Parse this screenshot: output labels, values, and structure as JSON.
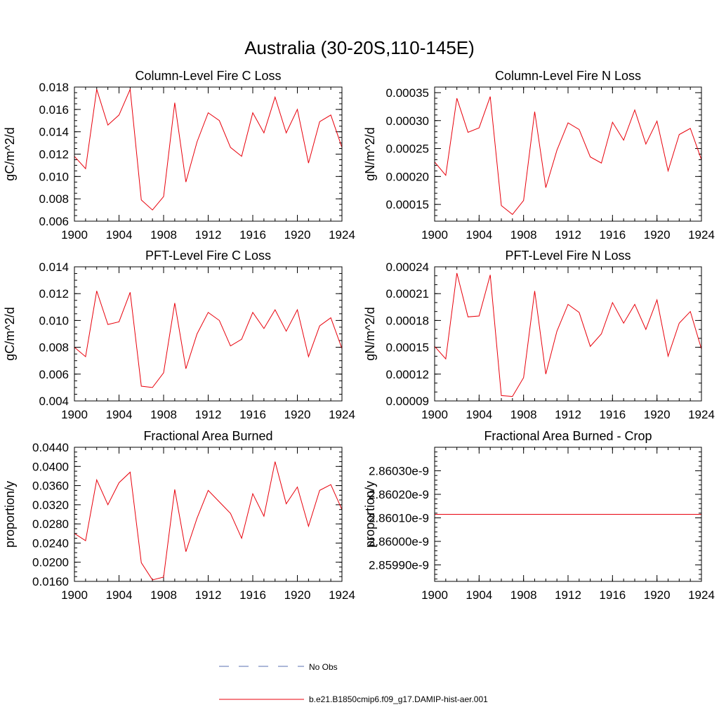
{
  "figure": {
    "title": "Australia (30-20S,110-145E)"
  },
  "legend": {
    "items": [
      {
        "label": "No Obs",
        "style": "dashed",
        "color": "#5a6fb0"
      },
      {
        "label": "b.e21.B1850cmip6.f09_g17.DAMIP-hist-aer.001",
        "style": "solid",
        "color": "#e8000b"
      }
    ]
  },
  "chart_data": [
    {
      "type": "line",
      "title": "Column-Level Fire C Loss",
      "ylabel": "gC/m^2/d",
      "xlim": [
        1900,
        1924
      ],
      "ylim": [
        0.006,
        0.018
      ],
      "xticks": [
        1900,
        1904,
        1908,
        1912,
        1916,
        1920,
        1924
      ],
      "yticks": [
        0.006,
        0.008,
        0.01,
        0.012,
        0.014,
        0.016,
        0.018
      ],
      "yticklabels": [
        "0.006",
        "0.008",
        "0.010",
        "0.012",
        "0.014",
        "0.016",
        "0.018"
      ],
      "yminor": 0.0005,
      "series": [
        {
          "color": "#e8000b",
          "x": [
            1900,
            1901,
            1902,
            1903,
            1904,
            1905,
            1906,
            1907,
            1908,
            1909,
            1910,
            1911,
            1912,
            1913,
            1914,
            1915,
            1916,
            1917,
            1918,
            1919,
            1920,
            1921,
            1922,
            1923,
            1924
          ],
          "y": [
            0.0118,
            0.0107,
            0.0178,
            0.0146,
            0.0155,
            0.0178,
            0.0079,
            0.007,
            0.0082,
            0.0166,
            0.0095,
            0.0131,
            0.0157,
            0.015,
            0.0126,
            0.0118,
            0.0157,
            0.0139,
            0.0171,
            0.0139,
            0.016,
            0.0112,
            0.0149,
            0.0155,
            0.0126
          ]
        }
      ]
    },
    {
      "type": "line",
      "title": "Column-Level Fire N Loss",
      "ylabel": "gN/m^2/d",
      "xlim": [
        1900,
        1924
      ],
      "ylim": [
        0.00012,
        0.00036
      ],
      "xticks": [
        1900,
        1904,
        1908,
        1912,
        1916,
        1920,
        1924
      ],
      "yticks": [
        0.00015,
        0.0002,
        0.00025,
        0.0003,
        0.00035
      ],
      "yticklabels": [
        "0.00015",
        "0.00020",
        "0.00025",
        "0.00030",
        "0.00035"
      ],
      "yminor": 1e-05,
      "series": [
        {
          "color": "#e8000b",
          "x": [
            1900,
            1901,
            1902,
            1903,
            1904,
            1905,
            1906,
            1907,
            1908,
            1909,
            1910,
            1911,
            1912,
            1913,
            1914,
            1915,
            1916,
            1917,
            1918,
            1919,
            1920,
            1921,
            1922,
            1923,
            1924
          ],
          "y": [
            0.000226,
            0.000202,
            0.00034,
            0.000279,
            0.000287,
            0.000343,
            0.000148,
            0.000132,
            0.000157,
            0.000316,
            0.00018,
            0.000247,
            0.000296,
            0.000284,
            0.000235,
            0.000224,
            0.000297,
            0.000265,
            0.000319,
            0.000258,
            0.000299,
            0.00021,
            0.000275,
            0.000286,
            0.00023
          ]
        }
      ]
    },
    {
      "type": "line",
      "title": "PFT-Level Fire C Loss",
      "ylabel": "gC/m^2/d",
      "xlim": [
        1900,
        1924
      ],
      "ylim": [
        0.004,
        0.014
      ],
      "xticks": [
        1900,
        1904,
        1908,
        1912,
        1916,
        1920,
        1924
      ],
      "yticks": [
        0.004,
        0.006,
        0.008,
        0.01,
        0.012,
        0.014
      ],
      "yticklabels": [
        "0.004",
        "0.006",
        "0.008",
        "0.010",
        "0.012",
        "0.014"
      ],
      "yminor": 0.0005,
      "series": [
        {
          "color": "#e8000b",
          "x": [
            1900,
            1901,
            1902,
            1903,
            1904,
            1905,
            1906,
            1907,
            1908,
            1909,
            1910,
            1911,
            1912,
            1913,
            1914,
            1915,
            1916,
            1917,
            1918,
            1919,
            1920,
            1921,
            1922,
            1923,
            1924
          ],
          "y": [
            0.008,
            0.0073,
            0.0122,
            0.0097,
            0.0099,
            0.0121,
            0.0051,
            0.005,
            0.0061,
            0.0113,
            0.0064,
            0.009,
            0.0106,
            0.01,
            0.0081,
            0.0086,
            0.0106,
            0.0094,
            0.0108,
            0.0092,
            0.0108,
            0.0073,
            0.0096,
            0.0102,
            0.0079
          ]
        }
      ]
    },
    {
      "type": "line",
      "title": "PFT-Level Fire N Loss",
      "ylabel": "gN/m^2/d",
      "xlim": [
        1900,
        1924
      ],
      "ylim": [
        9e-05,
        0.00024
      ],
      "xticks": [
        1900,
        1904,
        1908,
        1912,
        1916,
        1920,
        1924
      ],
      "yticks": [
        9e-05,
        0.00012,
        0.00015,
        0.00018,
        0.00021,
        0.00024
      ],
      "yticklabels": [
        "0.00009",
        "0.00012",
        "0.00015",
        "0.00018",
        "0.00021",
        "0.00024"
      ],
      "yminor": 1e-05,
      "series": [
        {
          "color": "#e8000b",
          "x": [
            1900,
            1901,
            1902,
            1903,
            1904,
            1905,
            1906,
            1907,
            1908,
            1909,
            1910,
            1911,
            1912,
            1913,
            1914,
            1915,
            1916,
            1917,
            1918,
            1919,
            1920,
            1921,
            1922,
            1923,
            1924
          ],
          "y": [
            0.000151,
            0.000137,
            0.000233,
            0.000184,
            0.000185,
            0.000231,
            9.6e-05,
            9.5e-05,
            0.000116,
            0.000213,
            0.00012,
            0.000168,
            0.000198,
            0.000189,
            0.000151,
            0.000165,
            0.0002,
            0.000177,
            0.000198,
            0.00017,
            0.000203,
            0.00014,
            0.000177,
            0.00019,
            0.000148
          ]
        }
      ]
    },
    {
      "type": "line",
      "title": "Fractional Area Burned",
      "ylabel": "proportion/y",
      "xlim": [
        1900,
        1924
      ],
      "ylim": [
        0.016,
        0.044
      ],
      "xticks": [
        1900,
        1904,
        1908,
        1912,
        1916,
        1920,
        1924
      ],
      "yticks": [
        0.016,
        0.02,
        0.024,
        0.028,
        0.032,
        0.036,
        0.04,
        0.044
      ],
      "yticklabels": [
        "0.0160",
        "0.0200",
        "0.0240",
        "0.0280",
        "0.0320",
        "0.0360",
        "0.0400",
        "0.0440"
      ],
      "yminor": 0.001,
      "series": [
        {
          "color": "#e8000b",
          "x": [
            1900,
            1901,
            1902,
            1903,
            1904,
            1905,
            1906,
            1907,
            1908,
            1909,
            1910,
            1911,
            1912,
            1913,
            1914,
            1915,
            1916,
            1917,
            1918,
            1919,
            1920,
            1921,
            1922,
            1923,
            1924
          ],
          "y": [
            0.026,
            0.0245,
            0.0372,
            0.032,
            0.0366,
            0.0388,
            0.0199,
            0.0163,
            0.0169,
            0.0352,
            0.0222,
            0.0292,
            0.035,
            0.0326,
            0.0302,
            0.025,
            0.0343,
            0.0296,
            0.041,
            0.0322,
            0.0357,
            0.0275,
            0.035,
            0.0362,
            0.031
          ]
        }
      ]
    },
    {
      "type": "line",
      "title": "Fractional Area Burned - Crop",
      "ylabel": "proportion/y",
      "xlim": [
        1900,
        1924
      ],
      "ylim": [
        2.85983e-09,
        2.8604e-09
      ],
      "xticks": [
        1900,
        1904,
        1908,
        1912,
        1916,
        1920,
        1924
      ],
      "yticks": [
        2.8599e-09,
        2.86e-09,
        2.8601e-09,
        2.8602e-09,
        2.8603e-09
      ],
      "yticklabels": [
        "2.85990e-9",
        "2.86000e-9",
        "2.86010e-9",
        "2.86020e-9",
        "2.86030e-9"
      ],
      "yminor": 2e-14,
      "series": [
        {
          "color": "#e8000b",
          "x": [
            1900,
            1924
          ],
          "y": [
            2.860115e-09,
            2.860115e-09
          ]
        }
      ]
    }
  ]
}
